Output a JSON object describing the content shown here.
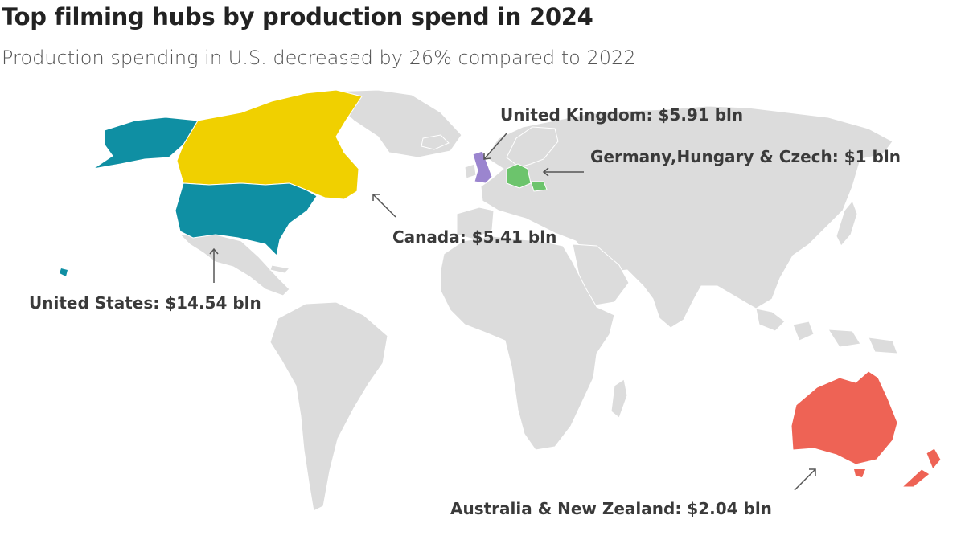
{
  "title": "Top filming hubs by production spend in 2024",
  "subtitle": "Production spending in U.S. decreased by 26% compared to 2022",
  "colors": {
    "land": "#dcdcdc",
    "border": "#ffffff",
    "united_states": "#0f8fa3",
    "canada": "#f0d000",
    "united_kingdom": "#9b85cf",
    "germany_hungary_czech": "#6cc46c",
    "australia_nz": "#ee6355",
    "arrow": "#555555"
  },
  "annotations": {
    "uk": "United Kingdom: $5.91 bln",
    "germany": "Germany,Hungary & Czech: $1 bln",
    "canada": "Canada: $5.41 bln",
    "us": "United States: $14.54 bln",
    "aus_nz": "Australia & New Zealand: $2.04 bln"
  }
}
